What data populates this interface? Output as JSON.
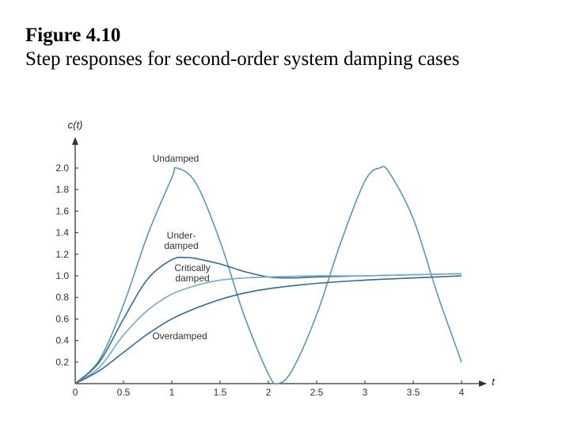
{
  "figure": {
    "label": "Figure 4.10",
    "caption": "Step responses for second-order system damping cases"
  },
  "chart_data": {
    "type": "line",
    "title": "",
    "xlabel": "t",
    "ylabel": "c(t)",
    "xlim": [
      0,
      4
    ],
    "ylim": [
      0,
      2.2
    ],
    "x_ticks": [
      "0",
      "0.5",
      "1",
      "1.5",
      "2",
      "2.5",
      "3",
      "3.5",
      "4"
    ],
    "y_ticks": [
      "0.2",
      "0.4",
      "0.6",
      "0.8",
      "1.0",
      "1.2",
      "1.4",
      "1.6",
      "1.8",
      "2.0"
    ],
    "grid": false,
    "line_color": "#5b97b5",
    "series": [
      {
        "name": "Undamped",
        "x": [
          0,
          0.25,
          0.5,
          0.75,
          1.0,
          1.05,
          1.25,
          1.5,
          1.75,
          2.0,
          2.1,
          2.25,
          2.5,
          2.75,
          3.0,
          3.15,
          3.25,
          3.5,
          3.75,
          4.0
        ],
        "values": [
          0,
          0.22,
          0.73,
          1.38,
          1.91,
          2.0,
          1.86,
          1.32,
          0.63,
          0.09,
          0.0,
          0.13,
          0.64,
          1.31,
          1.88,
          2.0,
          1.96,
          1.53,
          0.83,
          0.2
        ]
      },
      {
        "name": "Under-\ndamped",
        "x": [
          0,
          0.25,
          0.5,
          0.75,
          1.0,
          1.15,
          1.25,
          1.5,
          1.75,
          2.0,
          2.25,
          2.5,
          3.0,
          3.5,
          4.0
        ],
        "values": [
          0,
          0.2,
          0.6,
          0.97,
          1.15,
          1.17,
          1.16,
          1.11,
          1.04,
          0.99,
          0.98,
          0.99,
          1.0,
          1.01,
          1.02
        ],
        "color": "#2f6c93"
      },
      {
        "name": "Critically\ndamped",
        "x": [
          0,
          0.25,
          0.5,
          0.75,
          1.0,
          1.25,
          1.5,
          1.75,
          2.0,
          2.5,
          3.0,
          3.5,
          4.0
        ],
        "values": [
          0,
          0.15,
          0.45,
          0.68,
          0.83,
          0.91,
          0.96,
          0.98,
          0.99,
          1.0,
          1.0,
          1.01,
          1.02
        ],
        "color": "#79acc7"
      },
      {
        "name": "Overdamped",
        "x": [
          0,
          0.25,
          0.5,
          0.75,
          1.0,
          1.25,
          1.5,
          1.75,
          2.0,
          2.5,
          3.0,
          3.5,
          4.0
        ],
        "values": [
          0,
          0.12,
          0.29,
          0.46,
          0.6,
          0.7,
          0.78,
          0.84,
          0.88,
          0.93,
          0.96,
          0.98,
          1.0
        ],
        "color": "#2f6c93"
      }
    ],
    "annotations": [
      "Undamped",
      "Under-\ndamped",
      "Critically\ndamped",
      "Overdamped"
    ]
  }
}
